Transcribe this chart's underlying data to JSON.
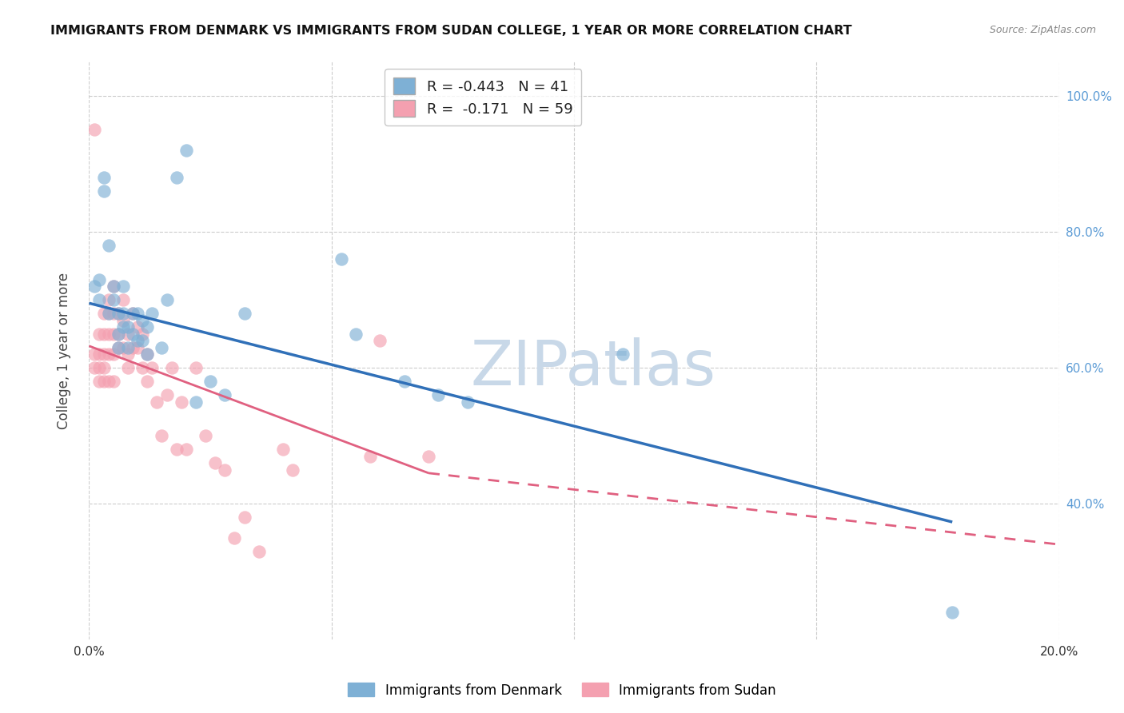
{
  "title": "IMMIGRANTS FROM DENMARK VS IMMIGRANTS FROM SUDAN COLLEGE, 1 YEAR OR MORE CORRELATION CHART",
  "source": "Source: ZipAtlas.com",
  "ylabel": "College, 1 year or more",
  "xlim": [
    0.0,
    0.2
  ],
  "ylim": [
    0.2,
    1.05
  ],
  "yticks": [
    0.4,
    0.6,
    0.8,
    1.0
  ],
  "ytick_labels": [
    "40.0%",
    "60.0%",
    "80.0%",
    "100.0%"
  ],
  "xticks": [
    0.0,
    0.05,
    0.1,
    0.15,
    0.2
  ],
  "xtick_labels": [
    "0.0%",
    "",
    "",
    "",
    "20.0%"
  ],
  "denmark_color": "#7EB0D5",
  "sudan_color": "#F4A0B0",
  "denmark_R": -0.443,
  "denmark_N": 41,
  "sudan_R": -0.171,
  "sudan_N": 59,
  "background_color": "#ffffff",
  "grid_color": "#cccccc",
  "right_axis_color": "#5B9BD5",
  "denmark_line_color": "#3070B8",
  "sudan_line_color": "#E06080",
  "denmark_x": [
    0.001,
    0.002,
    0.002,
    0.003,
    0.003,
    0.004,
    0.004,
    0.005,
    0.005,
    0.006,
    0.006,
    0.006,
    0.007,
    0.007,
    0.007,
    0.008,
    0.008,
    0.009,
    0.009,
    0.01,
    0.01,
    0.011,
    0.011,
    0.012,
    0.012,
    0.013,
    0.015,
    0.016,
    0.018,
    0.02,
    0.022,
    0.025,
    0.028,
    0.032,
    0.052,
    0.055,
    0.065,
    0.072,
    0.078,
    0.11,
    0.178
  ],
  "denmark_y": [
    0.72,
    0.73,
    0.7,
    0.88,
    0.86,
    0.78,
    0.68,
    0.72,
    0.7,
    0.68,
    0.65,
    0.63,
    0.72,
    0.68,
    0.66,
    0.66,
    0.63,
    0.68,
    0.65,
    0.68,
    0.64,
    0.67,
    0.64,
    0.66,
    0.62,
    0.68,
    0.63,
    0.7,
    0.88,
    0.92,
    0.55,
    0.58,
    0.56,
    0.68,
    0.76,
    0.65,
    0.58,
    0.56,
    0.55,
    0.62,
    0.24
  ],
  "sudan_x": [
    0.001,
    0.001,
    0.001,
    0.002,
    0.002,
    0.002,
    0.002,
    0.003,
    0.003,
    0.003,
    0.003,
    0.003,
    0.004,
    0.004,
    0.004,
    0.004,
    0.004,
    0.005,
    0.005,
    0.005,
    0.005,
    0.005,
    0.006,
    0.006,
    0.006,
    0.007,
    0.007,
    0.007,
    0.008,
    0.008,
    0.008,
    0.009,
    0.009,
    0.01,
    0.01,
    0.011,
    0.011,
    0.012,
    0.012,
    0.013,
    0.014,
    0.015,
    0.016,
    0.017,
    0.018,
    0.019,
    0.02,
    0.022,
    0.024,
    0.026,
    0.028,
    0.03,
    0.032,
    0.035,
    0.04,
    0.042,
    0.058,
    0.06,
    0.07
  ],
  "sudan_y": [
    0.95,
    0.62,
    0.6,
    0.65,
    0.62,
    0.6,
    0.58,
    0.68,
    0.65,
    0.62,
    0.6,
    0.58,
    0.7,
    0.68,
    0.65,
    0.62,
    0.58,
    0.72,
    0.68,
    0.65,
    0.62,
    0.58,
    0.68,
    0.65,
    0.63,
    0.7,
    0.67,
    0.63,
    0.65,
    0.62,
    0.6,
    0.68,
    0.63,
    0.66,
    0.63,
    0.65,
    0.6,
    0.62,
    0.58,
    0.6,
    0.55,
    0.5,
    0.56,
    0.6,
    0.48,
    0.55,
    0.48,
    0.6,
    0.5,
    0.46,
    0.45,
    0.35,
    0.38,
    0.33,
    0.48,
    0.45,
    0.47,
    0.64,
    0.47
  ],
  "zipatlas_watermark": "ZIPatlas",
  "watermark_color": "#c8d8e8",
  "dk_line_x0": 0.0,
  "dk_line_y0": 0.695,
  "dk_line_x1": 0.178,
  "dk_line_y1": 0.373,
  "su_line_x0": 0.0,
  "su_line_y0": 0.632,
  "su_line_x1": 0.07,
  "su_line_y1": 0.445,
  "su_line_dashed_x1": 0.2,
  "su_line_dashed_y1": 0.34
}
